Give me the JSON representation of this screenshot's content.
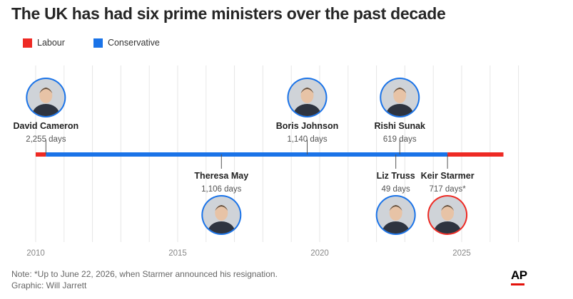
{
  "title": "The UK has had six prime ministers over the past decade",
  "legend": [
    {
      "label": "Labour",
      "color": "#ee2a24"
    },
    {
      "label": "Conservative",
      "color": "#1a73e8"
    }
  ],
  "chart_data": {
    "type": "timeline",
    "x_ticks": [
      "2010",
      "2015",
      "2020",
      "2025"
    ],
    "xlim": [
      2010,
      2027
    ],
    "segments": [
      {
        "party": "Labour",
        "start": 2010.0,
        "end": 2010.36
      },
      {
        "party": "Conservative",
        "start": 2010.36,
        "end": 2024.5
      },
      {
        "party": "Labour",
        "start": 2024.5,
        "end": 2026.47
      }
    ],
    "prime_ministers": [
      {
        "name": "David Cameron",
        "days": "2,255 days",
        "start": 2010.36,
        "position": "above",
        "party": "Conservative",
        "portrait": "portrait-icon"
      },
      {
        "name": "Theresa May",
        "days": "1,106 days",
        "start": 2016.54,
        "position": "below",
        "party": "Conservative",
        "portrait": "portrait-icon"
      },
      {
        "name": "Boris Johnson",
        "days": "1,140 days",
        "start": 2019.56,
        "position": "above",
        "party": "Conservative",
        "portrait": "portrait-icon"
      },
      {
        "name": "Liz Truss",
        "days": "49 days",
        "start": 2022.68,
        "position": "below",
        "party": "Conservative",
        "portrait": "portrait-icon"
      },
      {
        "name": "Rishi Sunak",
        "days": "619 days",
        "start": 2022.82,
        "position": "above",
        "party": "Conservative",
        "portrait": "portrait-icon"
      },
      {
        "name": "Keir Starmer",
        "days": "717 days*",
        "start": 2024.5,
        "position": "below",
        "party": "Labour",
        "portrait": "portrait-icon"
      }
    ]
  },
  "footer": {
    "note": "Note: *Up to June 22, 2026, when Starmer announced his resignation.",
    "credit": "Graphic: Will Jarrett"
  },
  "logo": "AP"
}
